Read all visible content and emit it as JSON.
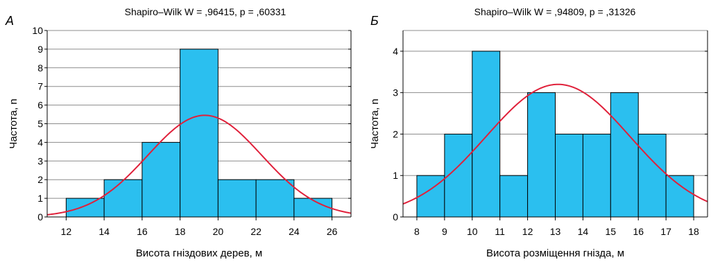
{
  "chart_data": [
    {
      "type": "bar",
      "panel_label": "А",
      "title": "Shapiro–Wilk W = ,96415, p = ,60331",
      "xlabel": "Висота гніздових дерев, м",
      "ylabel": "Частота, n",
      "xlim": [
        11,
        27
      ],
      "ylim": [
        0,
        10
      ],
      "xticks": [
        12,
        14,
        16,
        18,
        20,
        22,
        24,
        26
      ],
      "yticks": [
        0,
        1,
        2,
        3,
        4,
        5,
        6,
        7,
        8,
        9,
        10
      ],
      "bin_edges": [
        12,
        14,
        16,
        18,
        20,
        22,
        24,
        26
      ],
      "values": [
        1,
        2,
        4,
        9,
        2,
        2,
        1
      ],
      "grid": true,
      "bar_color": "#2bbfef",
      "normal_curve": {
        "mean": 19.3,
        "sd": 3.0,
        "peak": 5.45,
        "color": "#e0203a"
      }
    },
    {
      "type": "bar",
      "panel_label": "Б",
      "title": "Shapiro–Wilk W = ,94809, p = ,31326",
      "xlabel": "Висота розміщення гнізда, м",
      "ylabel": "Частота, n",
      "xlim": [
        7.5,
        18.5
      ],
      "ylim": [
        0,
        4.5
      ],
      "xticks": [
        8,
        9,
        10,
        11,
        12,
        13,
        14,
        15,
        16,
        17,
        18
      ],
      "yticks": [
        0,
        1,
        2,
        3,
        4
      ],
      "bin_edges": [
        8,
        9,
        10,
        11,
        12,
        13,
        14,
        15,
        16,
        17,
        18
      ],
      "values": [
        1,
        2,
        4,
        1,
        3,
        2,
        2,
        3,
        2,
        1
      ],
      "grid": true,
      "bar_color": "#2bbfef",
      "normal_curve": {
        "mean": 13.1,
        "sd": 2.6,
        "peak": 3.2,
        "color": "#e0203a"
      }
    }
  ]
}
